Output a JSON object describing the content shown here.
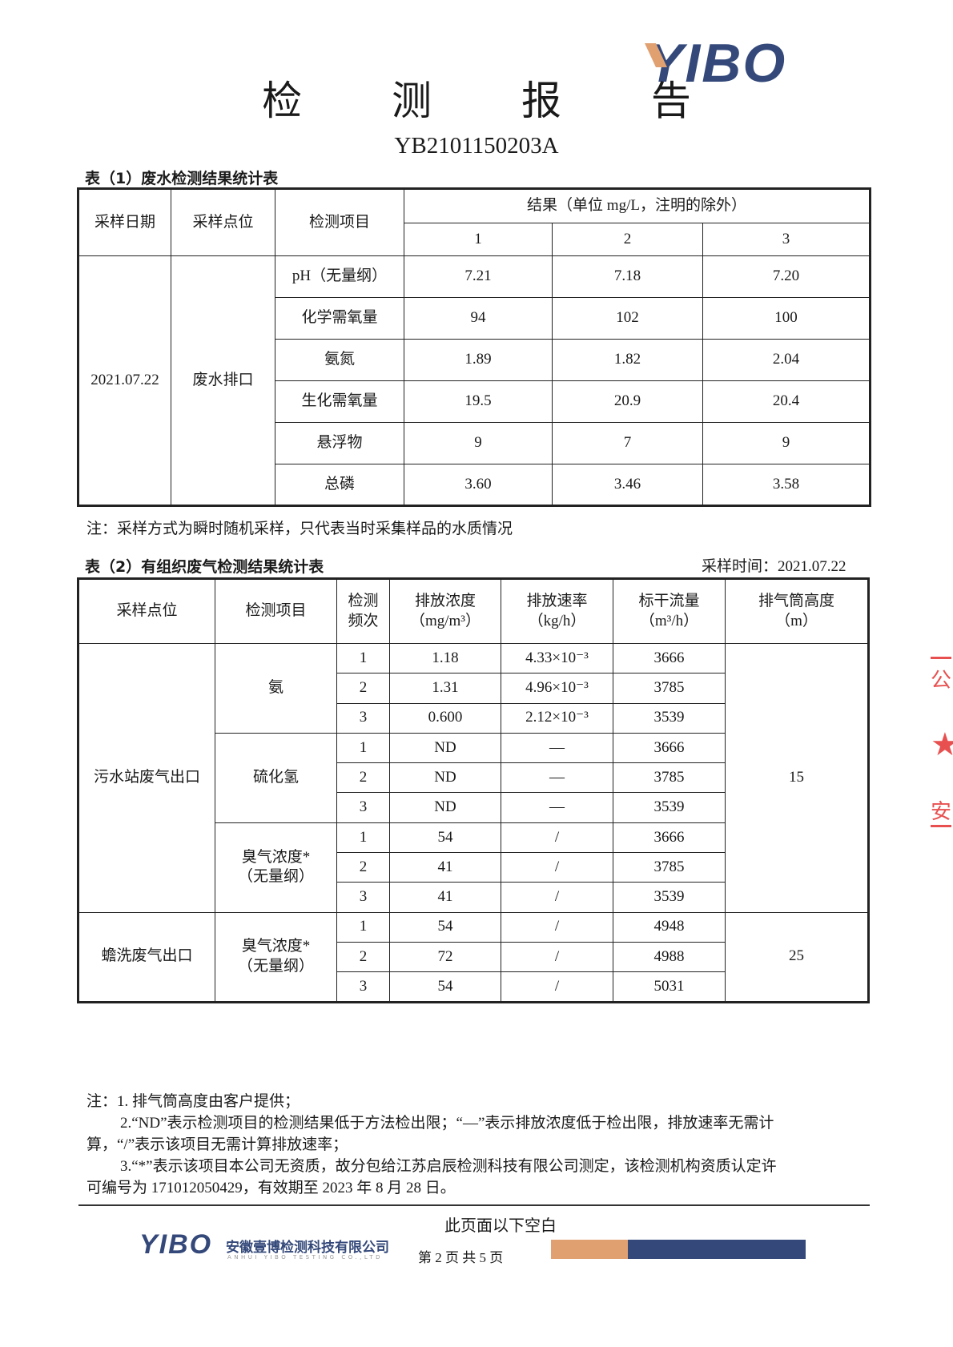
{
  "header": {
    "logo": "YIBO",
    "title": "检 测 报 告",
    "report_no": "YB2101150203A"
  },
  "table1": {
    "caption": "表（1）废水检测结果统计表",
    "headers": {
      "date": "采样日期",
      "point": "采样点位",
      "item": "检测项目",
      "result": "结果（单位 mg/L，注明的除外）",
      "runs": [
        "1",
        "2",
        "3"
      ]
    },
    "date": "2021.07.22",
    "point": "废水排口",
    "rows": [
      {
        "item": "pH（无量纲）",
        "v": [
          "7.21",
          "7.18",
          "7.20"
        ]
      },
      {
        "item": "化学需氧量",
        "v": [
          "94",
          "102",
          "100"
        ]
      },
      {
        "item": "氨氮",
        "v": [
          "1.89",
          "1.82",
          "2.04"
        ]
      },
      {
        "item": "生化需氧量",
        "v": [
          "19.5",
          "20.9",
          "20.4"
        ]
      },
      {
        "item": "悬浮物",
        "v": [
          "9",
          "7",
          "9"
        ]
      },
      {
        "item": "总磷",
        "v": [
          "3.60",
          "3.46",
          "3.58"
        ]
      }
    ],
    "note": "注：采样方式为瞬时随机采样，只代表当时采集样品的水质情况"
  },
  "table2": {
    "caption": "表（2）有组织废气检测结果统计表",
    "sample_time": "采样时间：2021.07.22",
    "headers": {
      "point": "采样点位",
      "item": "检测项目",
      "freq": "检测频次",
      "conc": "排放浓度",
      "conc_unit": "（mg/m³）",
      "rate": "排放速率",
      "rate_unit": "（kg/h）",
      "flow": "标干流量",
      "flow_unit": "（m³/h）",
      "height": "排气筒高度",
      "height_unit": "（m）"
    },
    "groups": [
      {
        "point": "污水站废气出口",
        "height": "15",
        "items": [
          {
            "item": "氨",
            "rows": [
              [
                "1",
                "1.18",
                "4.33×10⁻³",
                "3666"
              ],
              [
                "2",
                "1.31",
                "4.96×10⁻³",
                "3785"
              ],
              [
                "3",
                "0.600",
                "2.12×10⁻³",
                "3539"
              ]
            ]
          },
          {
            "item": "硫化氢",
            "rows": [
              [
                "1",
                "ND",
                "—",
                "3666"
              ],
              [
                "2",
                "ND",
                "—",
                "3785"
              ],
              [
                "3",
                "ND",
                "—",
                "3539"
              ]
            ]
          },
          {
            "item": "臭气浓度*（无量纲）",
            "rows": [
              [
                "1",
                "54",
                "/",
                "3666"
              ],
              [
                "2",
                "41",
                "/",
                "3785"
              ],
              [
                "3",
                "41",
                "/",
                "3539"
              ]
            ]
          }
        ]
      },
      {
        "point": "蟾洗废气出口",
        "height": "25",
        "items": [
          {
            "item": "臭气浓度*（无量纲）",
            "rows": [
              [
                "1",
                "54",
                "/",
                "4948"
              ],
              [
                "2",
                "72",
                "/",
                "4988"
              ],
              [
                "3",
                "54",
                "/",
                "5031"
              ]
            ]
          }
        ]
      }
    ],
    "notes": [
      "注：1. 排气筒高度由客户提供；",
      "2.“ND”表示检测项目的检测结果低于方法检出限；“—”表示排放浓度低于检出限，排放速率无需计",
      "算，“/”表示该项目无需计算排放速率；",
      "3.“*”表示该项目本公司无资质，故分包给江苏启辰检测科技有限公司测定，该检测机构资质认定许",
      "可编号为 171012050429，有效期至 2023 年 8 月 28 日。"
    ]
  },
  "footer": {
    "blank_note": "此页面以下空白",
    "logo": "YIBO",
    "company": "安徽壹博检测科技有限公司",
    "company_en": "ANHUI YIBO TESTING CO.,LTD",
    "page": "第 2 页 共 5 页",
    "bar_colors": [
      "#e0a070",
      "#34497a"
    ]
  },
  "stamp": {
    "text": "公 安",
    "color": "#e85050"
  }
}
